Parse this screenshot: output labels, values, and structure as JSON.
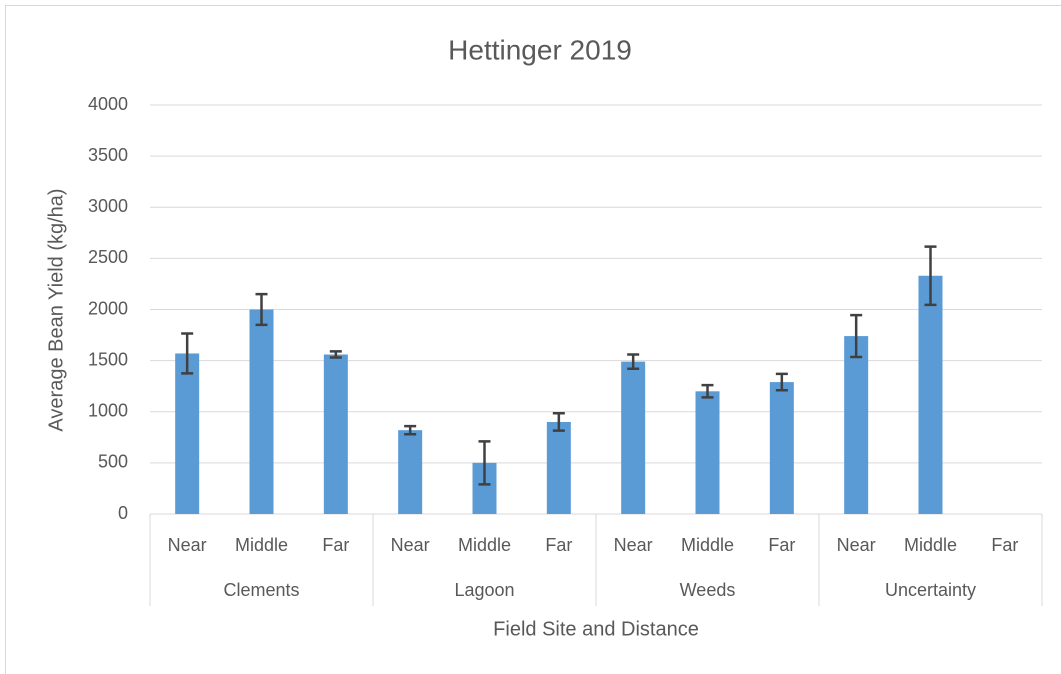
{
  "chart_data": {
    "type": "bar",
    "title": "Hettinger 2019",
    "x_label": "Field Site and Distance",
    "y_label": "Average Bean Yield (kg/ha)",
    "categories": [
      "Near",
      "Middle",
      "Far",
      "Near",
      "Middle",
      "Far",
      "Near",
      "Middle",
      "Far",
      "Near",
      "Middle",
      "Far"
    ],
    "groups": [
      "Clements",
      "Lagoon",
      "Weeds",
      "Uncertainty"
    ],
    "values": [
      1570,
      2000,
      1560,
      820,
      500,
      900,
      1490,
      1200,
      1290,
      1740,
      2330,
      null
    ],
    "errors": [
      195,
      150,
      30,
      40,
      210,
      85,
      70,
      60,
      80,
      205,
      285,
      null
    ],
    "color": "#5b9bd5",
    "error_color": "#404040",
    "ylim": [
      0,
      4000
    ],
    "yticks": [
      0,
      500,
      1000,
      1500,
      2000,
      2500,
      3000,
      3500,
      4000
    ],
    "grid": true
  }
}
